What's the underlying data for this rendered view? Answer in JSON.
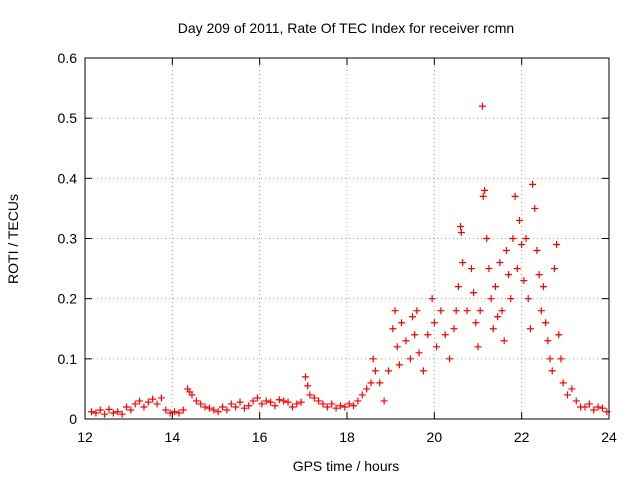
{
  "chart_data": {
    "type": "scatter",
    "title": "Day 209 of 2011, Rate Of TEC Index for receiver rcmn",
    "xlabel": "GPS time / hours",
    "ylabel": "ROTI / TECUs",
    "xlim": [
      12,
      24
    ],
    "ylim": [
      0,
      0.6
    ],
    "xticks": [
      "12",
      "14",
      "16",
      "18",
      "20",
      "22",
      "24"
    ],
    "yticks": [
      "0",
      "0.1",
      "0.2",
      "0.3",
      "0.4",
      "0.5",
      "0.6"
    ],
    "grid": true,
    "marker": "plus",
    "color": "#ff0000",
    "series": [
      {
        "points": [
          [
            12.15,
            0.012
          ],
          [
            12.25,
            0.01
          ],
          [
            12.35,
            0.015
          ],
          [
            12.45,
            0.008
          ],
          [
            12.55,
            0.016
          ],
          [
            12.65,
            0.01
          ],
          [
            12.75,
            0.012
          ],
          [
            12.85,
            0.008
          ],
          [
            12.95,
            0.02
          ],
          [
            13.05,
            0.015
          ],
          [
            13.15,
            0.025
          ],
          [
            13.25,
            0.03
          ],
          [
            13.35,
            0.02
          ],
          [
            13.45,
            0.028
          ],
          [
            13.55,
            0.033
          ],
          [
            13.65,
            0.025
          ],
          [
            13.75,
            0.035
          ],
          [
            13.85,
            0.015
          ],
          [
            13.95,
            0.01
          ],
          [
            14.05,
            0.012
          ],
          [
            14.15,
            0.01
          ],
          [
            14.25,
            0.015
          ],
          [
            14.35,
            0.05
          ],
          [
            14.4,
            0.045
          ],
          [
            14.45,
            0.04
          ],
          [
            14.55,
            0.03
          ],
          [
            14.65,
            0.025
          ],
          [
            14.75,
            0.02
          ],
          [
            14.85,
            0.018
          ],
          [
            14.95,
            0.015
          ],
          [
            15.05,
            0.012
          ],
          [
            15.15,
            0.02
          ],
          [
            15.25,
            0.015
          ],
          [
            15.35,
            0.025
          ],
          [
            15.45,
            0.02
          ],
          [
            15.55,
            0.028
          ],
          [
            15.65,
            0.018
          ],
          [
            15.75,
            0.022
          ],
          [
            15.85,
            0.03
          ],
          [
            15.95,
            0.035
          ],
          [
            16.05,
            0.025
          ],
          [
            16.15,
            0.03
          ],
          [
            16.25,
            0.028
          ],
          [
            16.35,
            0.022
          ],
          [
            16.45,
            0.032
          ],
          [
            16.55,
            0.03
          ],
          [
            16.65,
            0.028
          ],
          [
            16.75,
            0.02
          ],
          [
            16.85,
            0.025
          ],
          [
            16.95,
            0.028
          ],
          [
            17.05,
            0.07
          ],
          [
            17.1,
            0.055
          ],
          [
            17.15,
            0.04
          ],
          [
            17.25,
            0.035
          ],
          [
            17.35,
            0.03
          ],
          [
            17.45,
            0.025
          ],
          [
            17.55,
            0.02
          ],
          [
            17.65,
            0.025
          ],
          [
            17.75,
            0.018
          ],
          [
            17.85,
            0.022
          ],
          [
            17.95,
            0.02
          ],
          [
            18.05,
            0.025
          ],
          [
            18.15,
            0.022
          ],
          [
            18.25,
            0.03
          ],
          [
            18.35,
            0.04
          ],
          [
            18.45,
            0.05
          ],
          [
            18.55,
            0.06
          ],
          [
            18.6,
            0.1
          ],
          [
            18.65,
            0.08
          ],
          [
            18.75,
            0.06
          ],
          [
            18.85,
            0.03
          ],
          [
            18.95,
            0.08
          ],
          [
            19.05,
            0.15
          ],
          [
            19.1,
            0.18
          ],
          [
            19.15,
            0.12
          ],
          [
            19.2,
            0.09
          ],
          [
            19.25,
            0.16
          ],
          [
            19.35,
            0.13
          ],
          [
            19.45,
            0.1
          ],
          [
            19.5,
            0.17
          ],
          [
            19.55,
            0.14
          ],
          [
            19.6,
            0.18
          ],
          [
            19.65,
            0.11
          ],
          [
            19.75,
            0.08
          ],
          [
            19.85,
            0.14
          ],
          [
            19.95,
            0.2
          ],
          [
            20.0,
            0.16
          ],
          [
            20.05,
            0.12
          ],
          [
            20.15,
            0.18
          ],
          [
            20.25,
            0.14
          ],
          [
            20.35,
            0.1
          ],
          [
            20.45,
            0.15
          ],
          [
            20.5,
            0.18
          ],
          [
            20.55,
            0.22
          ],
          [
            20.6,
            0.32
          ],
          [
            20.62,
            0.31
          ],
          [
            20.65,
            0.26
          ],
          [
            20.75,
            0.18
          ],
          [
            20.85,
            0.25
          ],
          [
            20.9,
            0.21
          ],
          [
            20.95,
            0.16
          ],
          [
            21.0,
            0.12
          ],
          [
            21.05,
            0.18
          ],
          [
            21.1,
            0.52
          ],
          [
            21.12,
            0.37
          ],
          [
            21.15,
            0.38
          ],
          [
            21.2,
            0.3
          ],
          [
            21.25,
            0.25
          ],
          [
            21.3,
            0.2
          ],
          [
            21.35,
            0.15
          ],
          [
            21.4,
            0.22
          ],
          [
            21.45,
            0.17
          ],
          [
            21.5,
            0.26
          ],
          [
            21.55,
            0.18
          ],
          [
            21.6,
            0.13
          ],
          [
            21.65,
            0.28
          ],
          [
            21.7,
            0.24
          ],
          [
            21.75,
            0.2
          ],
          [
            21.8,
            0.3
          ],
          [
            21.85,
            0.37
          ],
          [
            21.9,
            0.25
          ],
          [
            21.95,
            0.33
          ],
          [
            22.0,
            0.29
          ],
          [
            22.05,
            0.23
          ],
          [
            22.1,
            0.3
          ],
          [
            22.15,
            0.2
          ],
          [
            22.2,
            0.15
          ],
          [
            22.25,
            0.39
          ],
          [
            22.3,
            0.35
          ],
          [
            22.35,
            0.28
          ],
          [
            22.4,
            0.24
          ],
          [
            22.45,
            0.18
          ],
          [
            22.5,
            0.22
          ],
          [
            22.55,
            0.16
          ],
          [
            22.6,
            0.13
          ],
          [
            22.65,
            0.1
          ],
          [
            22.7,
            0.08
          ],
          [
            22.75,
            0.25
          ],
          [
            22.8,
            0.29
          ],
          [
            22.85,
            0.14
          ],
          [
            22.9,
            0.1
          ],
          [
            22.95,
            0.06
          ],
          [
            23.05,
            0.04
          ],
          [
            23.15,
            0.05
          ],
          [
            23.25,
            0.03
          ],
          [
            23.35,
            0.02
          ],
          [
            23.45,
            0.02
          ],
          [
            23.55,
            0.025
          ],
          [
            23.65,
            0.015
          ],
          [
            23.75,
            0.02
          ],
          [
            23.85,
            0.018
          ],
          [
            23.95,
            0.012
          ]
        ]
      }
    ]
  }
}
